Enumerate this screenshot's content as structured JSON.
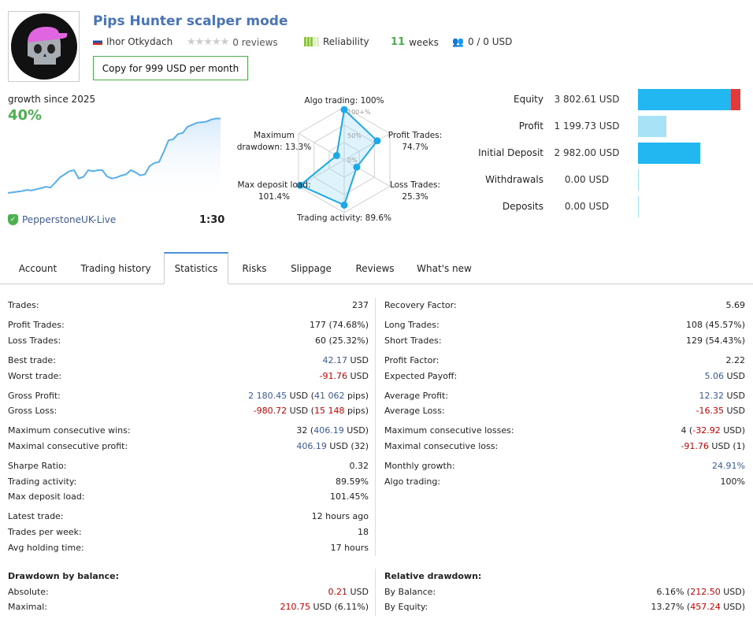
{
  "header": {
    "title": "Pips Hunter scalper mode",
    "author": "Ihor Otkydach",
    "reviews": "0 reviews",
    "reliability": "Reliability",
    "weeks_num": "11",
    "weeks_label": "weeks",
    "subscribers": "0 / 0 USD",
    "copy_button": "Copy for 999 USD per month",
    "rating_stars": 0,
    "reliability_level": 3
  },
  "growth": {
    "label": "growth since 2025",
    "value": "40%",
    "broker": "PepperstoneUK-Live",
    "leverage": "1:30",
    "line": [
      0,
      0.3,
      0.6,
      0.9,
      1.5,
      1.2,
      1.8,
      2.3,
      3,
      2.6,
      5,
      7.5,
      9,
      10.5,
      11,
      7,
      7.8,
      11,
      10.5,
      11,
      11,
      8,
      7,
      7.5,
      8.4,
      9,
      11,
      10,
      8.5,
      9,
      13,
      14.5,
      15,
      20,
      25.5,
      26,
      28.5,
      29,
      32,
      33,
      34,
      34.2,
      34.5,
      35.5,
      36,
      36
    ]
  },
  "radar": {
    "axes": [
      {
        "label": "Algo trading: 100%",
        "value": 100
      },
      {
        "label": "Profit Trades: 74.7%",
        "value": 74.7
      },
      {
        "label": "Loss Trades: 25.3%",
        "value": 25.3
      },
      {
        "label": "Trading activity: 89.6%",
        "value": 89.6
      },
      {
        "label": "Max deposit load: 101.4%",
        "value": 101.4
      },
      {
        "label": "Maximum drawdown: 13.3%",
        "value": 13.3
      }
    ],
    "ticks": [
      "100+%",
      "50%",
      "0%"
    ]
  },
  "finance": [
    {
      "label": "Equity",
      "value": "3 802.61 USD",
      "amount": 3802.61,
      "color": "#22b7f0",
      "overlay": "#e03a3a"
    },
    {
      "label": "Profit",
      "value": "1 199.73 USD",
      "amount": 1199.73,
      "color": "#a8e2f7"
    },
    {
      "label": "Initial Deposit",
      "value": "2 982.00 USD",
      "amount": 2982.0,
      "color": "#22b7f0"
    },
    {
      "label": "Withdrawals",
      "value": "0.00 USD",
      "amount": 0,
      "color": "#a8e2f7"
    },
    {
      "label": "Deposits",
      "value": "0.00 USD",
      "amount": 0,
      "color": "#a8e2f7"
    }
  ],
  "tabs": [
    {
      "label": "Account"
    },
    {
      "label": "Trading history"
    },
    {
      "label": "Statistics",
      "active": true
    },
    {
      "label": "Risks"
    },
    {
      "label": "Slippage"
    },
    {
      "label": "Reviews"
    },
    {
      "label": "What's new"
    }
  ],
  "stats_left": [
    [
      {
        "label": "Trades:",
        "value": [
          [
            "237",
            ""
          ]
        ]
      }
    ],
    [
      {
        "label": "Profit Trades:",
        "value": [
          [
            "177 (74.68%)",
            ""
          ]
        ]
      },
      {
        "label": "Loss Trades:",
        "value": [
          [
            "60 (25.32%)",
            ""
          ]
        ]
      }
    ],
    [
      {
        "label": "Best trade:",
        "value": [
          [
            "42.17",
            "blue"
          ],
          [
            " USD",
            ""
          ]
        ]
      },
      {
        "label": "Worst trade:",
        "value": [
          [
            "-91.76",
            "red"
          ],
          [
            " USD",
            ""
          ]
        ]
      }
    ],
    [
      {
        "label": "Gross Profit:",
        "value": [
          [
            "2 180.45",
            "blue"
          ],
          [
            " USD (",
            ""
          ],
          [
            "41 062",
            "blue"
          ],
          [
            " pips)",
            ""
          ]
        ]
      },
      {
        "label": "Gross Loss:",
        "value": [
          [
            "-980.72",
            "red"
          ],
          [
            " USD (",
            ""
          ],
          [
            "15 148",
            "red"
          ],
          [
            " pips)",
            ""
          ]
        ]
      }
    ],
    [
      {
        "label": "Maximum consecutive wins:",
        "value": [
          [
            "32 (",
            ""
          ],
          [
            "406.19",
            "blue"
          ],
          [
            " USD)",
            ""
          ]
        ]
      },
      {
        "label": "Maximal consecutive profit:",
        "value": [
          [
            "406.19",
            "blue"
          ],
          [
            " USD (32)",
            ""
          ]
        ]
      }
    ],
    [
      {
        "label": "Sharpe Ratio:",
        "value": [
          [
            "0.32",
            ""
          ]
        ]
      },
      {
        "label": "Trading activity:",
        "value": [
          [
            "89.59%",
            ""
          ]
        ]
      },
      {
        "label": "Max deposit load:",
        "value": [
          [
            "101.45%",
            ""
          ]
        ]
      }
    ],
    [
      {
        "label": "Latest trade:",
        "value": [
          [
            "12 hours ago",
            ""
          ]
        ]
      },
      {
        "label": "Trades per week:",
        "value": [
          [
            "18",
            ""
          ]
        ]
      },
      {
        "label": "Avg holding time:",
        "value": [
          [
            "17 hours",
            ""
          ]
        ]
      }
    ]
  ],
  "stats_right": [
    [
      {
        "label": "Recovery Factor:",
        "value": [
          [
            "5.69",
            ""
          ]
        ]
      }
    ],
    [
      {
        "label": "Long Trades:",
        "value": [
          [
            "108 (45.57%)",
            ""
          ]
        ]
      },
      {
        "label": "Short Trades:",
        "value": [
          [
            "129 (54.43%)",
            ""
          ]
        ]
      }
    ],
    [
      {
        "label": "Profit Factor:",
        "value": [
          [
            "2.22",
            ""
          ]
        ]
      },
      {
        "label": "Expected Payoff:",
        "value": [
          [
            "5.06",
            "blue"
          ],
          [
            " USD",
            ""
          ]
        ]
      }
    ],
    [
      {
        "label": "Average Profit:",
        "value": [
          [
            "12.32",
            "blue"
          ],
          [
            " USD",
            ""
          ]
        ]
      },
      {
        "label": "Average Loss:",
        "value": [
          [
            "-16.35",
            "red"
          ],
          [
            " USD",
            ""
          ]
        ]
      }
    ],
    [
      {
        "label": "Maximum consecutive losses:",
        "value": [
          [
            "4 (",
            ""
          ],
          [
            "-32.92",
            "red"
          ],
          [
            " USD)",
            ""
          ]
        ]
      },
      {
        "label": "Maximal consecutive loss:",
        "value": [
          [
            "-91.76",
            "red"
          ],
          [
            " USD (1)",
            ""
          ]
        ]
      }
    ],
    [
      {
        "label": "Monthly growth:",
        "value": [
          [
            "24.91%",
            "blue"
          ]
        ]
      },
      {
        "label": "Algo trading:",
        "value": [
          [
            "100%",
            ""
          ]
        ]
      }
    ]
  ],
  "drawdown_left": {
    "title": "Drawdown by balance:",
    "rows": [
      {
        "label": "Absolute:",
        "value": [
          [
            "0.21",
            "red"
          ],
          [
            " USD",
            ""
          ]
        ]
      },
      {
        "label": "Maximal:",
        "value": [
          [
            "210.75",
            "red"
          ],
          [
            " USD (6.11%)",
            ""
          ]
        ]
      }
    ]
  },
  "drawdown_right": {
    "title": "Relative drawdown:",
    "rows": [
      {
        "label": "By Balance:",
        "value": [
          [
            "6.16% (",
            ""
          ],
          [
            "212.50",
            "red"
          ],
          [
            " USD)",
            ""
          ]
        ]
      },
      {
        "label": "By Equity:",
        "value": [
          [
            "13.27% (",
            ""
          ],
          [
            "457.24",
            "red"
          ],
          [
            " USD)",
            ""
          ]
        ]
      }
    ]
  }
}
